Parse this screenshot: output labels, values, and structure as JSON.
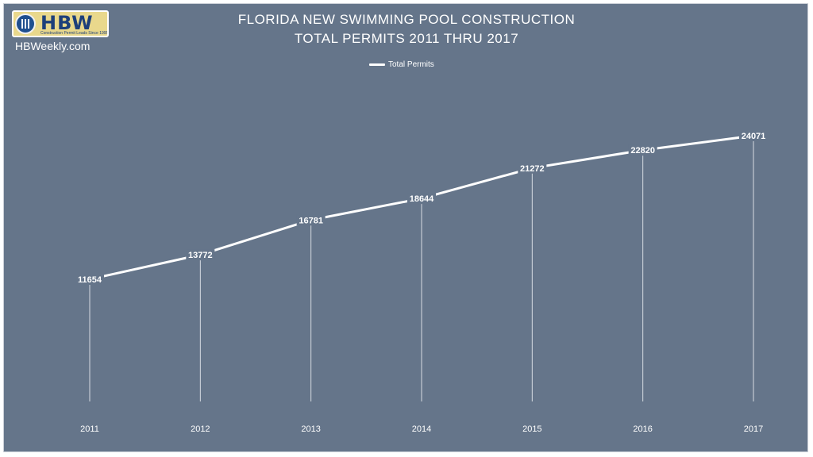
{
  "brand": {
    "logo_text": "HBW",
    "logo_tagline": "Construction Permit Leads Since 1995",
    "site": "HBWeekly.com"
  },
  "colors": {
    "background": "#65758a",
    "line": "#ffffff",
    "drop_line": "#d6dbe2",
    "text": "#ffffff"
  },
  "chart_data": {
    "type": "line",
    "title": "FLORIDA NEW SWIMMING POOL CONSTRUCTION",
    "subtitle": "TOTAL PERMITS 2011 THRU 2017",
    "categories": [
      "2011",
      "2012",
      "2013",
      "2014",
      "2015",
      "2016",
      "2017"
    ],
    "series": [
      {
        "name": "Total Permits",
        "values": [
          11654,
          13772,
          16781,
          18644,
          21272,
          22820,
          24071
        ]
      }
    ],
    "legend": "top-center",
    "grid": false,
    "drop_lines": true,
    "data_labels": true,
    "ylim": [
      0,
      26000
    ]
  }
}
